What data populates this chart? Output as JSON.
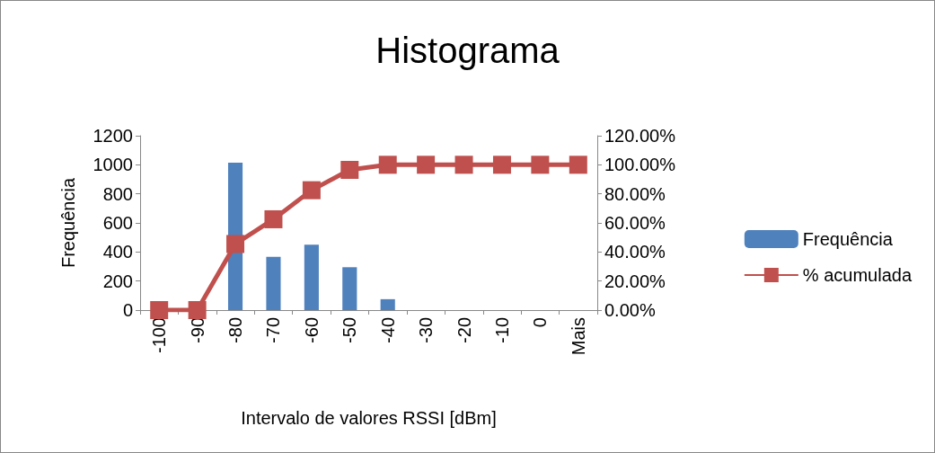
{
  "chart_data": {
    "type": "bar",
    "title": "Histograma",
    "xlabel": "Intervalo de valores RSSI [dBm]",
    "ylabel": "Frequência",
    "categories": [
      "-100",
      "-90",
      "-80",
      "-70",
      "-60",
      "-50",
      "-40",
      "-30",
      "-20",
      "-10",
      "0",
      "Mais"
    ],
    "series": [
      {
        "name": "Frequência",
        "color": "#4f81bd",
        "values": [
          0,
          0,
          1015,
          366,
          450,
          295,
          75,
          0,
          0,
          0,
          0,
          0
        ]
      },
      {
        "name": "% acumulada",
        "type": "line",
        "axis": "y2",
        "color": "#c0504d",
        "marker": "square",
        "values": [
          0,
          0,
          45.5,
          62.5,
          82.5,
          96.5,
          100,
          100,
          100,
          100,
          100,
          100
        ]
      }
    ],
    "ylim": [
      0,
      1200
    ],
    "yticks": [
      0,
      200,
      400,
      600,
      800,
      1000,
      1200
    ],
    "y2lim": [
      0,
      120
    ],
    "y2ticks": [
      {
        "value": 0,
        "label": "0.00%"
      },
      {
        "value": 20,
        "label": "20.00%"
      },
      {
        "value": 40,
        "label": "40.00%"
      },
      {
        "value": 60,
        "label": "60.00%"
      },
      {
        "value": 80,
        "label": "80.00%"
      },
      {
        "value": 100,
        "label": "100.00%"
      },
      {
        "value": 120,
        "label": "120.00%"
      }
    ],
    "grid": false,
    "legend": "right"
  }
}
